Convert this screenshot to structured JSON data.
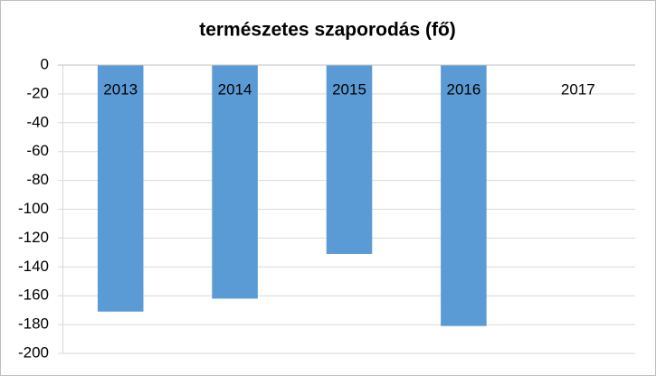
{
  "chart_data": {
    "type": "bar",
    "title": "természetes szaporodás (fő)",
    "categories": [
      "2013",
      "2014",
      "2015",
      "2016",
      "2017"
    ],
    "values": [
      -171,
      -162,
      -131,
      -181,
      null
    ],
    "color": "#5b9bd5",
    "ylim": [
      -200,
      0
    ],
    "yticks": [
      0,
      -20,
      -40,
      -60,
      -80,
      -100,
      -120,
      -140,
      -160,
      -180,
      -200
    ],
    "grid": true
  }
}
